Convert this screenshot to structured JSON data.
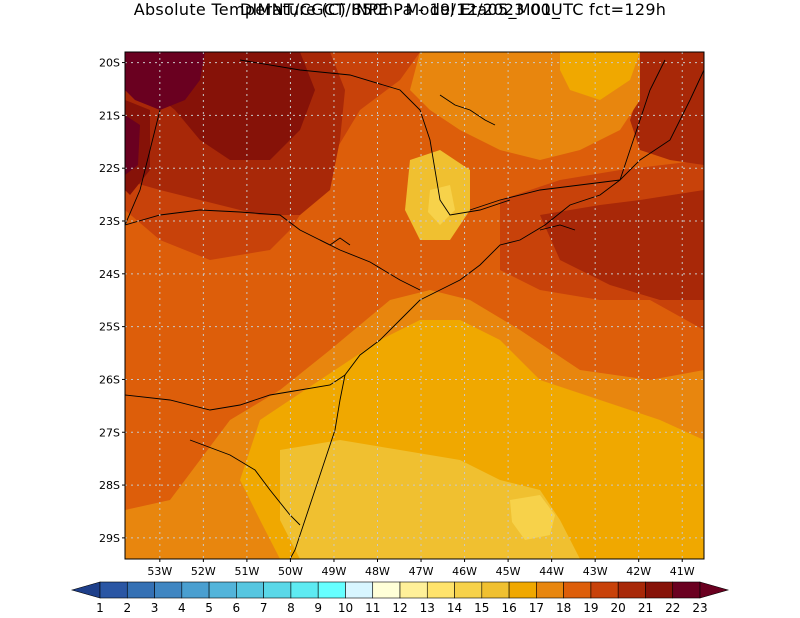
{
  "header": {
    "title_line1": "DIMNT/CGCT/INPE -  Model Eta05_M01_",
    "title_line2": "Absolute Temperature (C) 850hPa -  19/12/2023 00UTC fct=129h"
  },
  "map": {
    "lat_labels": [
      "20S",
      "21S",
      "22S",
      "23S",
      "24S",
      "25S",
      "26S",
      "27S",
      "28S",
      "29S"
    ],
    "lon_labels": [
      "53W",
      "52W",
      "51W",
      "50W",
      "49W",
      "48W",
      "47W",
      "46W",
      "45W",
      "44W",
      "43W",
      "42W",
      "41W"
    ],
    "lat_range": [
      -29.4,
      -19.8
    ],
    "lon_range": [
      -53.8,
      -40.5
    ],
    "grid": "dotted"
  },
  "colorbar": {
    "labels": [
      "1",
      "2",
      "3",
      "4",
      "5",
      "6",
      "7",
      "8",
      "9",
      "10",
      "11",
      "12",
      "13",
      "14",
      "15",
      "16",
      "17",
      "18",
      "19",
      "20",
      "21",
      "22",
      "23"
    ],
    "colors": [
      "#1e3f8a",
      "#2a56a4",
      "#3470b4",
      "#3f86c2",
      "#4a9fd0",
      "#52b4da",
      "#56c6e0",
      "#5ad8e8",
      "#5eebf2",
      "#66ffff",
      "#d8f6ff",
      "#ffffd8",
      "#fff099",
      "#ffe36b",
      "#f7d24a",
      "#f0c030",
      "#f0a800",
      "#e8860e",
      "#dd5e0a",
      "#c8420a",
      "#a82808",
      "#861208",
      "#6a0020"
    ]
  },
  "legend_colors": {
    "t16": "#f0c030",
    "t17": "#f0a800",
    "t18": "#e8860e",
    "t19": "#dd5e0a",
    "t20": "#c8420a",
    "t21": "#a82808",
    "t22": "#861208",
    "t23": "#6a0020"
  }
}
